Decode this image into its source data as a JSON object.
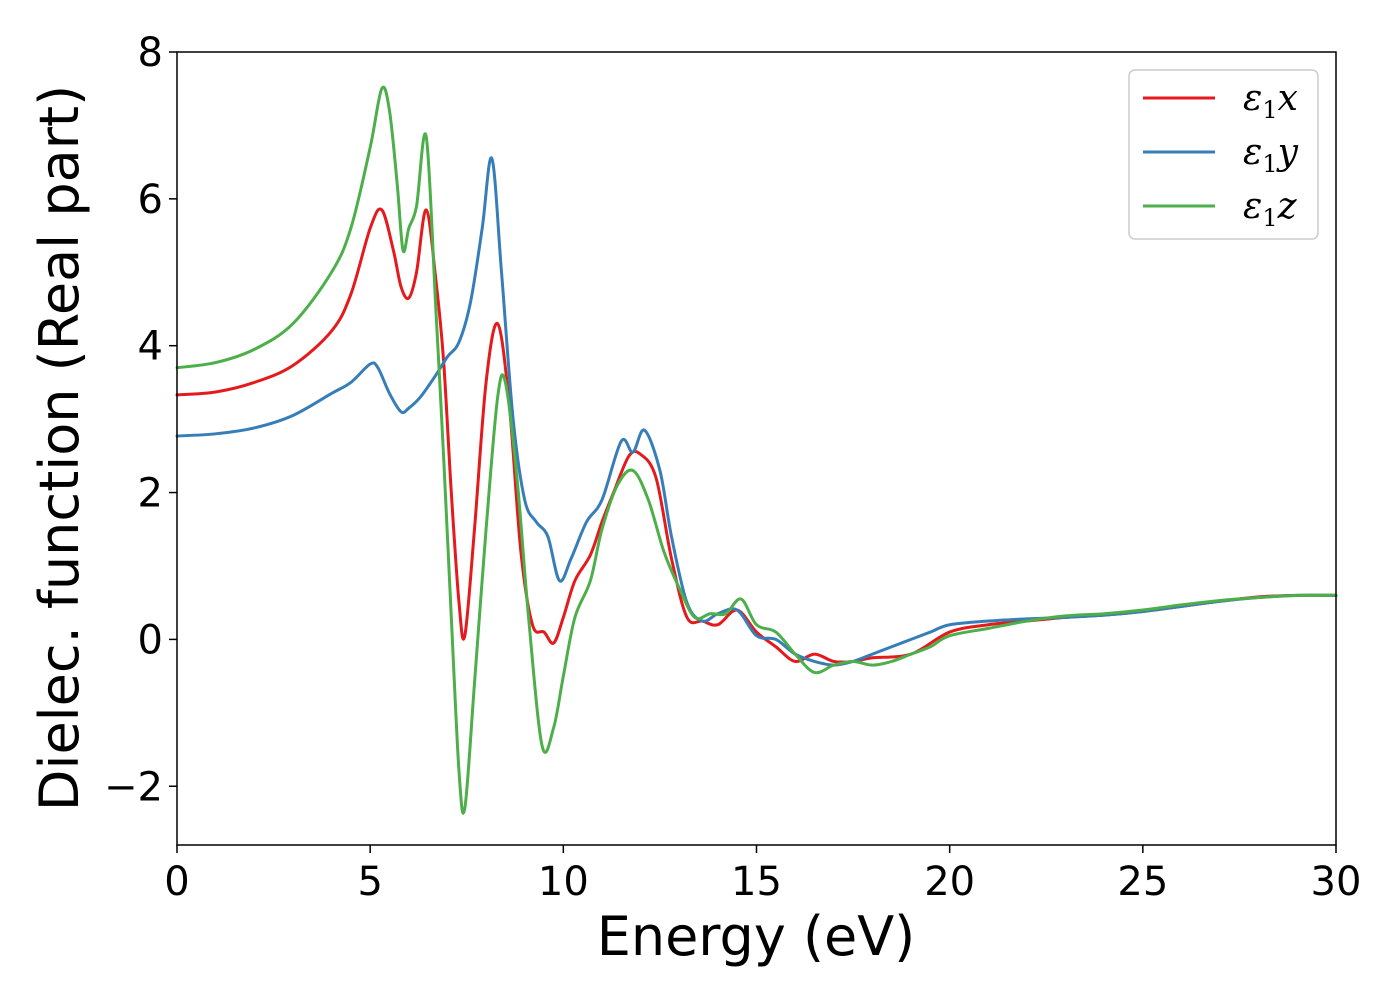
{
  "chart_data": {
    "type": "line",
    "xlabel": "Energy (eV)",
    "ylabel": "Dielec. function (Real part)",
    "xlim": [
      0,
      30
    ],
    "ylim": [
      -2.8,
      8
    ],
    "xticks": [
      0,
      5,
      10,
      15,
      20,
      25,
      30
    ],
    "xtick_labels": [
      "0",
      "5",
      "10",
      "15",
      "20",
      "25",
      "30"
    ],
    "yticks": [
      -2,
      0,
      2,
      4,
      6,
      8
    ],
    "ytick_labels": [
      "−2",
      "0",
      "2",
      "4",
      "6",
      "8"
    ],
    "grid": false,
    "legend_position": "top-right",
    "series": [
      {
        "name": "ε1x",
        "legend_base": "ε",
        "legend_sub": "1",
        "legend_var": "x",
        "color": "#e41a1c",
        "x": [
          0,
          1,
          2,
          3,
          4,
          4.5,
          5,
          5.3,
          5.6,
          5.8,
          6.0,
          6.2,
          6.45,
          6.7,
          6.9,
          7.1,
          7.3,
          7.45,
          7.7,
          8.0,
          8.3,
          8.6,
          8.9,
          9.2,
          9.5,
          9.75,
          10.0,
          10.3,
          10.7,
          11.0,
          11.3,
          11.7,
          12.0,
          12.4,
          12.8,
          13.2,
          13.6,
          14.0,
          14.5,
          15.0,
          15.5,
          16.0,
          16.5,
          17.0,
          17.5,
          18.0,
          19.0,
          20.0,
          21.0,
          22.0,
          23.0,
          24.0,
          25.0,
          26.0,
          27.0,
          28.0,
          29.0,
          30.0
        ],
        "y": [
          3.33,
          3.37,
          3.5,
          3.73,
          4.2,
          4.7,
          5.6,
          5.85,
          5.3,
          4.8,
          4.65,
          5.0,
          5.85,
          4.9,
          3.8,
          2.0,
          0.5,
          0.05,
          1.5,
          3.5,
          4.3,
          3.2,
          1.2,
          0.2,
          0.1,
          -0.05,
          0.3,
          0.8,
          1.15,
          1.6,
          2.0,
          2.5,
          2.52,
          2.2,
          1.1,
          0.3,
          0.25,
          0.2,
          0.4,
          0.1,
          -0.1,
          -0.3,
          -0.2,
          -0.3,
          -0.3,
          -0.25,
          -0.2,
          0.1,
          0.2,
          0.25,
          0.3,
          0.33,
          0.38,
          0.45,
          0.52,
          0.58,
          0.6,
          0.6
        ]
      },
      {
        "name": "ε1y",
        "legend_base": "ε",
        "legend_sub": "1",
        "legend_var": "y",
        "color": "#377eb8",
        "x": [
          0,
          1,
          2,
          3,
          4,
          4.5,
          5.0,
          5.2,
          5.5,
          5.8,
          6.0,
          6.3,
          6.7,
          7.0,
          7.3,
          7.6,
          7.9,
          8.15,
          8.4,
          8.7,
          9.0,
          9.3,
          9.6,
          9.9,
          10.2,
          10.6,
          11.0,
          11.5,
          11.8,
          12.1,
          12.5,
          12.8,
          13.2,
          13.6,
          14.0,
          14.5,
          15.0,
          15.5,
          16.0,
          16.5,
          17.0,
          17.5,
          18.0,
          18.5,
          19.0,
          19.5,
          20.0,
          21.0,
          22.0,
          23.0,
          24.0,
          25.0,
          26.0,
          27.0,
          28.0,
          29.0,
          30.0
        ],
        "y": [
          2.77,
          2.8,
          2.88,
          3.05,
          3.35,
          3.5,
          3.75,
          3.7,
          3.35,
          3.1,
          3.15,
          3.3,
          3.6,
          3.85,
          4.05,
          4.6,
          5.6,
          6.55,
          5.0,
          3.0,
          1.9,
          1.6,
          1.4,
          0.8,
          1.1,
          1.6,
          1.9,
          2.7,
          2.55,
          2.85,
          2.3,
          1.4,
          0.5,
          0.25,
          0.35,
          0.4,
          0.05,
          0.0,
          -0.2,
          -0.3,
          -0.35,
          -0.3,
          -0.2,
          -0.1,
          0.0,
          0.1,
          0.2,
          0.25,
          0.28,
          0.3,
          0.33,
          0.38,
          0.45,
          0.52,
          0.57,
          0.6,
          0.6
        ]
      },
      {
        "name": "ε1z",
        "legend_base": "ε",
        "legend_sub": "1",
        "legend_var": "z",
        "color": "#4daf4a",
        "x": [
          0,
          1,
          2,
          3,
          4,
          4.5,
          5.0,
          5.3,
          5.5,
          5.7,
          5.85,
          6.0,
          6.2,
          6.45,
          6.7,
          6.9,
          7.1,
          7.3,
          7.45,
          7.7,
          8.0,
          8.3,
          8.5,
          8.8,
          9.1,
          9.45,
          9.75,
          10.0,
          10.3,
          10.7,
          11.0,
          11.4,
          11.8,
          12.2,
          12.6,
          13.0,
          13.4,
          13.8,
          14.2,
          14.6,
          15.0,
          15.5,
          16.0,
          16.5,
          17.0,
          17.5,
          18.0,
          18.5,
          19.0,
          19.5,
          20.0,
          21.0,
          22.0,
          23.0,
          24.0,
          25.0,
          26.0,
          27.0,
          28.0,
          29.0,
          30.0
        ],
        "y": [
          3.7,
          3.77,
          3.95,
          4.3,
          5.0,
          5.6,
          6.7,
          7.5,
          7.2,
          6.2,
          5.3,
          5.6,
          5.9,
          6.85,
          4.5,
          2.5,
          0.3,
          -1.8,
          -2.3,
          -0.6,
          1.5,
          3.3,
          3.5,
          2.2,
          0.3,
          -1.45,
          -1.2,
          -0.5,
          0.3,
          0.8,
          1.5,
          2.1,
          2.3,
          1.9,
          1.2,
          0.7,
          0.3,
          0.35,
          0.35,
          0.55,
          0.2,
          0.1,
          -0.2,
          -0.45,
          -0.35,
          -0.3,
          -0.35,
          -0.3,
          -0.2,
          -0.1,
          0.05,
          0.15,
          0.25,
          0.32,
          0.35,
          0.4,
          0.47,
          0.53,
          0.57,
          0.6,
          0.6
        ]
      }
    ]
  }
}
